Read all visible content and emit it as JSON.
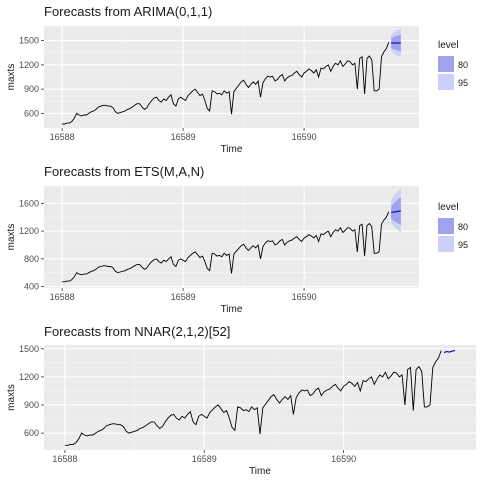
{
  "chart_data": [
    {
      "type": "line",
      "title": "Forecasts from ARIMA(0,1,1)",
      "xlabel": "Time",
      "ylabel": "maxts",
      "xlim": [
        16587.85,
        16590.95
      ],
      "ylim": [
        420,
        1680
      ],
      "xticks": [
        16588,
        16589,
        16590
      ],
      "xtick_labels": [
        "16588",
        "16589",
        "16590"
      ],
      "yticks": [
        600,
        900,
        1200,
        1500
      ],
      "ytick_labels": [
        "600",
        "900",
        "1200",
        "1500"
      ],
      "grid": true,
      "legend": {
        "title": "level",
        "position": "right",
        "entries": [
          {
            "label": "80",
            "color": "#9ea3ec"
          },
          {
            "label": "95",
            "color": "#cdd0f6"
          }
        ]
      },
      "history_color": "#000000",
      "forecast": {
        "x": [
          16590.72,
          16590.74,
          16590.76,
          16590.78,
          16590.8
        ],
        "mean": [
          1470,
          1470,
          1470,
          1470,
          1470
        ],
        "lo80": [
          1410,
          1395,
          1385,
          1375,
          1365
        ],
        "hi80": [
          1530,
          1545,
          1555,
          1565,
          1575
        ],
        "lo95": [
          1370,
          1345,
          1325,
          1310,
          1295
        ],
        "hi95": [
          1575,
          1600,
          1620,
          1635,
          1650
        ],
        "line_color": "#0000cc"
      }
    },
    {
      "type": "line",
      "title": "Forecasts from ETS(M,A,N)",
      "xlabel": "Time",
      "ylabel": "maxts",
      "xlim": [
        16587.85,
        16590.95
      ],
      "ylim": [
        380,
        1850
      ],
      "xticks": [
        16588,
        16589,
        16590
      ],
      "xtick_labels": [
        "16588",
        "16589",
        "16590"
      ],
      "yticks": [
        400,
        800,
        1200,
        1600
      ],
      "ytick_labels": [
        "400",
        "800",
        "1200",
        "1600"
      ],
      "grid": true,
      "legend": {
        "title": "level",
        "position": "right",
        "entries": [
          {
            "label": "80",
            "color": "#9ea3ec"
          },
          {
            "label": "95",
            "color": "#cdd0f6"
          }
        ]
      },
      "history_color": "#000000",
      "forecast": {
        "x": [
          16590.72,
          16590.74,
          16590.76,
          16590.78,
          16590.8
        ],
        "mean": [
          1470,
          1475,
          1480,
          1485,
          1490
        ],
        "lo80": [
          1380,
          1350,
          1330,
          1310,
          1290
        ],
        "hi80": [
          1560,
          1600,
          1630,
          1660,
          1690
        ],
        "lo95": [
          1310,
          1270,
          1240,
          1210,
          1180
        ],
        "hi95": [
          1640,
          1700,
          1740,
          1780,
          1820
        ],
        "line_color": "#0000cc"
      }
    },
    {
      "type": "line",
      "title": "Forecasts from NNAR(2,1,2)[52]",
      "xlabel": "Time",
      "ylabel": "maxts",
      "xlim": [
        16587.85,
        16590.95
      ],
      "ylim": [
        420,
        1540
      ],
      "xticks": [
        16588,
        16589,
        16590
      ],
      "xtick_labels": [
        "16588",
        "16589",
        "16590"
      ],
      "yticks": [
        600,
        900,
        1200,
        1500
      ],
      "ytick_labels": [
        "600",
        "900",
        "1200",
        "1500"
      ],
      "grid": true,
      "history_color": "#000000",
      "forecast": {
        "x": [
          16590.72,
          16590.74,
          16590.76,
          16590.78,
          16590.8
        ],
        "mean": [
          1460,
          1470,
          1465,
          1475,
          1480
        ],
        "line_color": "#0000cc"
      }
    }
  ],
  "series_history": {
    "x": [
      16588.0,
      16588.02,
      16588.04,
      16588.06,
      16588.08,
      16588.1,
      16588.12,
      16588.14,
      16588.16,
      16588.18,
      16588.2,
      16588.22,
      16588.24,
      16588.26,
      16588.28,
      16588.3,
      16588.32,
      16588.34,
      16588.36,
      16588.38,
      16588.4,
      16588.42,
      16588.44,
      16588.46,
      16588.48,
      16588.5,
      16588.52,
      16588.54,
      16588.56,
      16588.58,
      16588.6,
      16588.62,
      16588.64,
      16588.66,
      16588.68,
      16588.7,
      16588.72,
      16588.74,
      16588.76,
      16588.78,
      16588.8,
      16588.82,
      16588.84,
      16588.86,
      16588.88,
      16588.9,
      16588.92,
      16588.94,
      16588.96,
      16588.98,
      16589.0,
      16589.02,
      16589.04,
      16589.06,
      16589.08,
      16589.1,
      16589.12,
      16589.14,
      16589.16,
      16589.18,
      16589.2,
      16589.22,
      16589.24,
      16589.26,
      16589.28,
      16589.3,
      16589.32,
      16589.34,
      16589.36,
      16589.38,
      16589.4,
      16589.42,
      16589.44,
      16589.46,
      16589.48,
      16589.5,
      16589.52,
      16589.54,
      16589.56,
      16589.58,
      16589.6,
      16589.62,
      16589.64,
      16589.66,
      16589.68,
      16589.7,
      16589.72,
      16589.74,
      16589.76,
      16589.78,
      16589.8,
      16589.82,
      16589.84,
      16589.86,
      16589.88,
      16589.9,
      16589.92,
      16589.94,
      16589.96,
      16589.98,
      16590.0,
      16590.02,
      16590.04,
      16590.06,
      16590.08,
      16590.1,
      16590.12,
      16590.14,
      16590.16,
      16590.18,
      16590.2,
      16590.22,
      16590.24,
      16590.26,
      16590.28,
      16590.3,
      16590.32,
      16590.34,
      16590.36,
      16590.38,
      16590.4,
      16590.42,
      16590.44,
      16590.46,
      16590.48,
      16590.5,
      16590.52,
      16590.54,
      16590.56,
      16590.58,
      16590.6,
      16590.62,
      16590.64,
      16590.66,
      16590.68,
      16590.7
    ],
    "y": [
      470,
      470,
      480,
      480,
      500,
      540,
      600,
      580,
      570,
      580,
      580,
      600,
      620,
      630,
      650,
      680,
      690,
      700,
      700,
      690,
      690,
      670,
      620,
      600,
      610,
      620,
      630,
      650,
      660,
      680,
      700,
      720,
      720,
      680,
      650,
      670,
      720,
      760,
      790,
      800,
      760,
      740,
      780,
      760,
      800,
      830,
      720,
      690,
      780,
      800,
      780,
      760,
      820,
      850,
      880,
      900,
      860,
      820,
      840,
      760,
      660,
      630,
      880,
      870,
      840,
      850,
      830,
      880,
      850,
      870,
      590,
      870,
      910,
      950,
      990,
      1010,
      960,
      920,
      960,
      990,
      960,
      1000,
      800,
      980,
      1030,
      1060,
      1050,
      1060,
      1000,
      1020,
      1060,
      1080,
      1000,
      1040,
      1060,
      1070,
      1100,
      1120,
      1080,
      1050,
      1100,
      1120,
      1150,
      1130,
      1100,
      1140,
      1050,
      1160,
      1150,
      1180,
      1200,
      1120,
      1180,
      1220,
      1200,
      1250,
      1180,
      1210,
      1250,
      1240,
      1200,
      1220,
      900,
      1280,
      1300,
      840,
      1280,
      1310,
      1260,
      880,
      880,
      900,
      1300,
      1360,
      1400,
      1480
    ]
  }
}
